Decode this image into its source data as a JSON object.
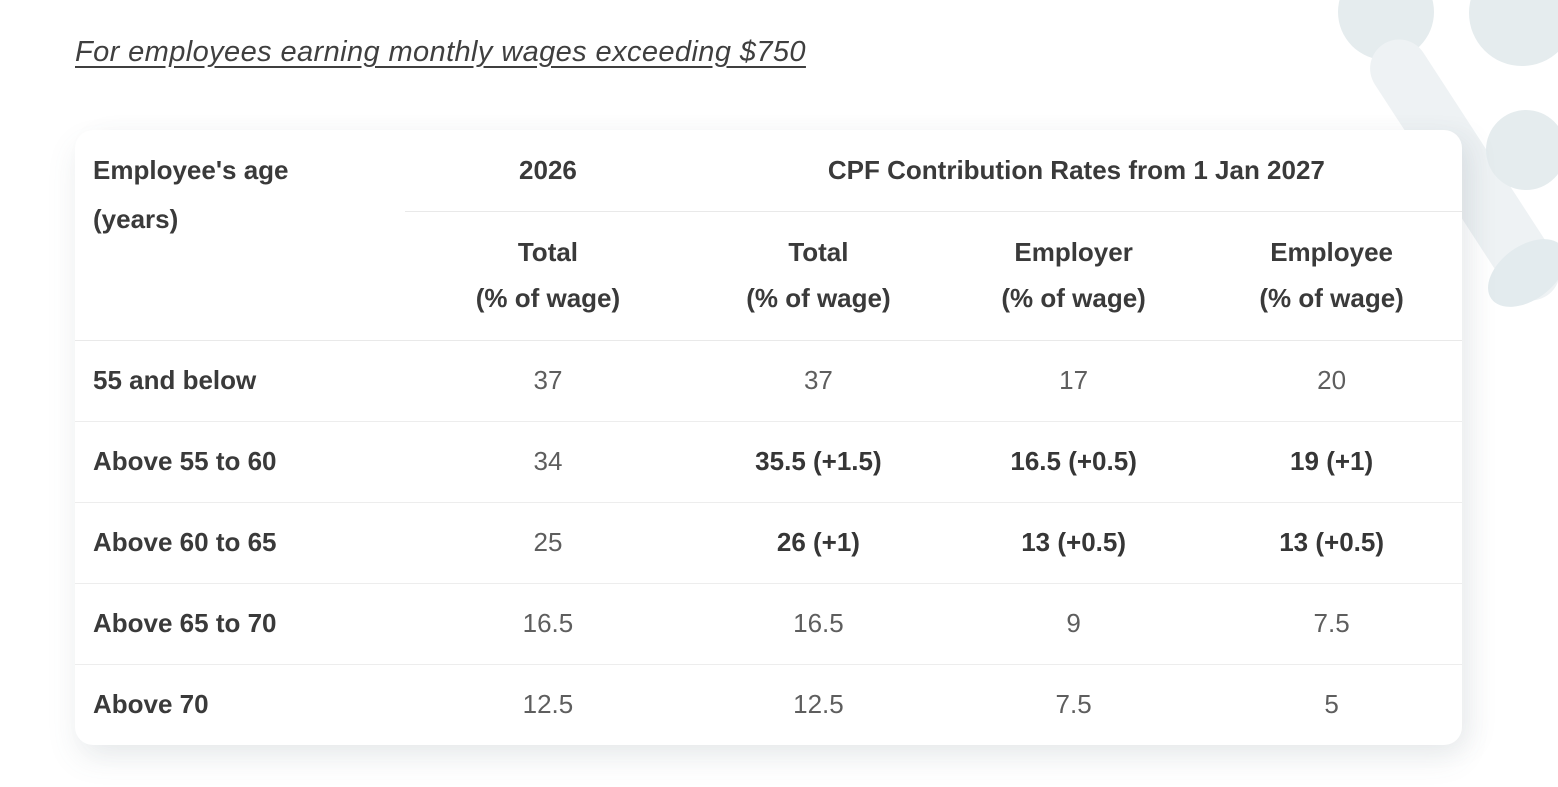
{
  "heading": "For employees earning monthly wages exceeding $750",
  "table": {
    "corner_header": {
      "line1": "Employee's age",
      "line2": "(years)"
    },
    "group_headers": {
      "y2026": "2026",
      "y2027": "CPF Contribution Rates from 1 Jan 2027"
    },
    "sub_headers": [
      {
        "line1": "Total",
        "line2": "(% of wage)"
      },
      {
        "line1": "Total",
        "line2": "(% of wage)"
      },
      {
        "line1": "Employer",
        "line2": "(% of wage)"
      },
      {
        "line1": "Employee",
        "line2": "(% of wage)"
      }
    ],
    "rows": [
      {
        "age": "55 and below",
        "values": [
          {
            "text": "37",
            "bold": false
          },
          {
            "text": "37",
            "bold": false
          },
          {
            "text": "17",
            "bold": false
          },
          {
            "text": "20",
            "bold": false
          }
        ]
      },
      {
        "age": "Above 55 to 60",
        "values": [
          {
            "text": "34",
            "bold": false
          },
          {
            "text": "35.5 (+1.5)",
            "bold": true
          },
          {
            "text": "16.5 (+0.5)",
            "bold": true
          },
          {
            "text": "19 (+1)",
            "bold": true
          }
        ]
      },
      {
        "age": "Above 60 to 65",
        "values": [
          {
            "text": "25",
            "bold": false
          },
          {
            "text": "26 (+1)",
            "bold": true
          },
          {
            "text": "13 (+0.5)",
            "bold": true
          },
          {
            "text": "13 (+0.5)",
            "bold": true
          }
        ]
      },
      {
        "age": "Above 65 to 70",
        "values": [
          {
            "text": "16.5",
            "bold": false
          },
          {
            "text": "16.5",
            "bold": false
          },
          {
            "text": "9",
            "bold": false
          },
          {
            "text": "7.5",
            "bold": false
          }
        ]
      },
      {
        "age": "Above 70",
        "values": [
          {
            "text": "12.5",
            "bold": false
          },
          {
            "text": "12.5",
            "bold": false
          },
          {
            "text": "7.5",
            "bold": false
          },
          {
            "text": "5",
            "bold": false
          }
        ]
      }
    ]
  },
  "colors": {
    "text_dark": "#3a3a3a",
    "text_muted": "#5e5e5e",
    "divider": "#e9e9e9",
    "decor_shape": "#e5ecee",
    "card_bg": "#ffffff"
  }
}
